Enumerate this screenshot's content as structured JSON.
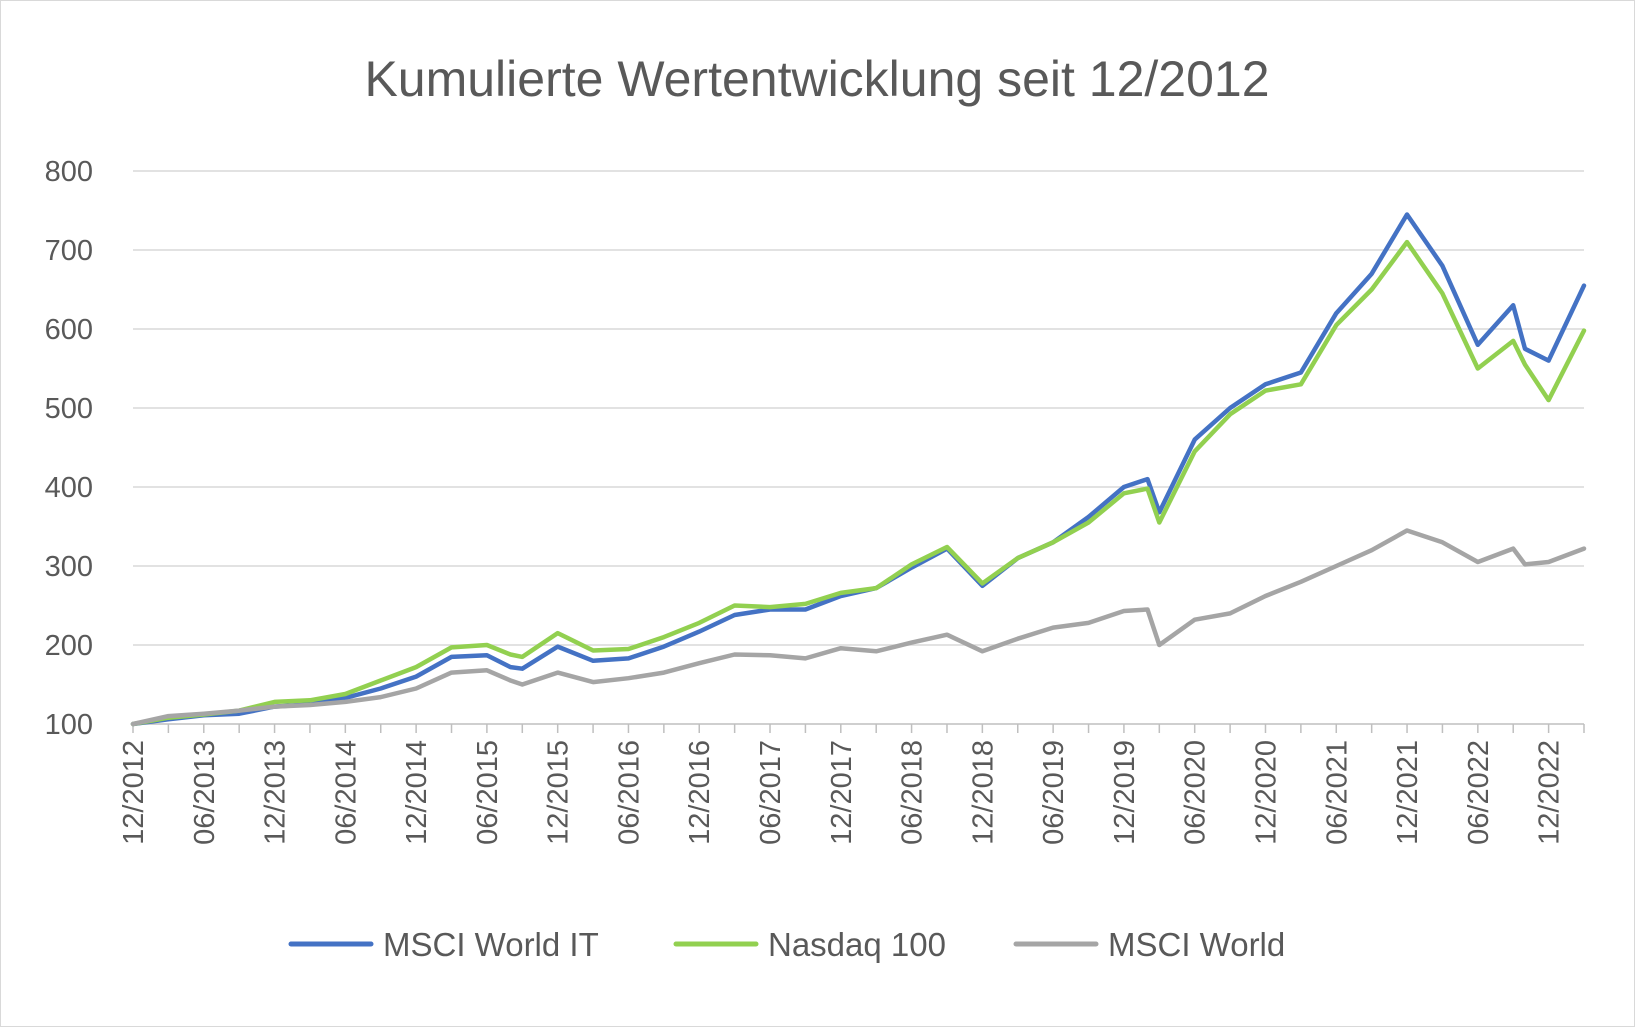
{
  "chart_data": {
    "type": "line",
    "title": "Kumulierte Wertentwicklung seit 12/2012",
    "ylim": [
      100,
      800
    ],
    "yticks": [
      100,
      200,
      300,
      400,
      500,
      600,
      700,
      800
    ],
    "ytick_labels": [
      "100",
      "200",
      "300",
      "400",
      "500",
      "600",
      "700",
      "800"
    ],
    "x_start": "12/2012",
    "x_end": "03/2023",
    "xtick_labels": [
      "12/2012",
      "06/2013",
      "12/2013",
      "06/2014",
      "12/2014",
      "06/2015",
      "12/2015",
      "06/2016",
      "12/2016",
      "06/2017",
      "12/2017",
      "06/2018",
      "12/2018",
      "06/2019",
      "12/2019",
      "06/2020",
      "12/2020",
      "06/2021",
      "12/2021",
      "06/2022",
      "12/2022"
    ],
    "grid": true,
    "legend_position": "bottom",
    "colors": {
      "msci_world_it": "#4472c4",
      "nasdaq_100": "#92d050",
      "msci_world": "#a5a5a5"
    },
    "series": [
      {
        "name": "MSCI World IT",
        "color": "#4472c4",
        "points": [
          [
            "12/2012",
            100
          ],
          [
            "03/2013",
            106
          ],
          [
            "06/2013",
            111
          ],
          [
            "09/2013",
            113
          ],
          [
            "12/2013",
            122
          ],
          [
            "03/2014",
            125
          ],
          [
            "06/2014",
            133
          ],
          [
            "09/2014",
            145
          ],
          [
            "12/2014",
            160
          ],
          [
            "03/2015",
            185
          ],
          [
            "06/2015",
            187
          ],
          [
            "08/2015",
            172
          ],
          [
            "09/2015",
            170
          ],
          [
            "12/2015",
            198
          ],
          [
            "03/2016",
            180
          ],
          [
            "06/2016",
            183
          ],
          [
            "09/2016",
            198
          ],
          [
            "12/2016",
            217
          ],
          [
            "03/2017",
            238
          ],
          [
            "06/2017",
            245
          ],
          [
            "09/2017",
            245
          ],
          [
            "12/2017",
            262
          ],
          [
            "03/2018",
            272
          ],
          [
            "06/2018",
            298
          ],
          [
            "09/2018",
            322
          ],
          [
            "12/2018",
            275
          ],
          [
            "03/2019",
            310
          ],
          [
            "06/2019",
            330
          ],
          [
            "09/2019",
            362
          ],
          [
            "12/2019",
            400
          ],
          [
            "02/2020",
            410
          ],
          [
            "03/2020",
            368
          ],
          [
            "06/2020",
            460
          ],
          [
            "09/2020",
            500
          ],
          [
            "12/2020",
            530
          ],
          [
            "03/2021",
            545
          ],
          [
            "06/2021",
            620
          ],
          [
            "09/2021",
            670
          ],
          [
            "12/2021",
            745
          ],
          [
            "03/2022",
            680
          ],
          [
            "06/2022",
            580
          ],
          [
            "09/2022",
            630
          ],
          [
            "10/2022",
            575
          ],
          [
            "12/2022",
            560
          ],
          [
            "03/2023",
            655
          ]
        ]
      },
      {
        "name": "Nasdaq 100",
        "color": "#92d050",
        "points": [
          [
            "12/2012",
            100
          ],
          [
            "03/2013",
            108
          ],
          [
            "06/2013",
            112
          ],
          [
            "09/2013",
            117
          ],
          [
            "12/2013",
            128
          ],
          [
            "03/2014",
            130
          ],
          [
            "06/2014",
            138
          ],
          [
            "09/2014",
            155
          ],
          [
            "12/2014",
            172
          ],
          [
            "03/2015",
            197
          ],
          [
            "06/2015",
            200
          ],
          [
            "08/2015",
            188
          ],
          [
            "09/2015",
            185
          ],
          [
            "12/2015",
            215
          ],
          [
            "03/2016",
            193
          ],
          [
            "06/2016",
            195
          ],
          [
            "09/2016",
            210
          ],
          [
            "12/2016",
            228
          ],
          [
            "03/2017",
            250
          ],
          [
            "06/2017",
            248
          ],
          [
            "09/2017",
            252
          ],
          [
            "12/2017",
            266
          ],
          [
            "03/2018",
            272
          ],
          [
            "06/2018",
            302
          ],
          [
            "09/2018",
            324
          ],
          [
            "12/2018",
            278
          ],
          [
            "03/2019",
            310
          ],
          [
            "06/2019",
            330
          ],
          [
            "09/2019",
            355
          ],
          [
            "12/2019",
            392
          ],
          [
            "02/2020",
            398
          ],
          [
            "03/2020",
            355
          ],
          [
            "06/2020",
            445
          ],
          [
            "09/2020",
            492
          ],
          [
            "12/2020",
            522
          ],
          [
            "03/2021",
            530
          ],
          [
            "06/2021",
            605
          ],
          [
            "09/2021",
            650
          ],
          [
            "12/2021",
            710
          ],
          [
            "03/2022",
            645
          ],
          [
            "06/2022",
            550
          ],
          [
            "09/2022",
            585
          ],
          [
            "10/2022",
            555
          ],
          [
            "12/2022",
            510
          ],
          [
            "03/2023",
            598
          ]
        ]
      },
      {
        "name": "MSCI World",
        "color": "#a5a5a5",
        "points": [
          [
            "12/2012",
            100
          ],
          [
            "03/2013",
            110
          ],
          [
            "06/2013",
            113
          ],
          [
            "09/2013",
            117
          ],
          [
            "12/2013",
            122
          ],
          [
            "03/2014",
            124
          ],
          [
            "06/2014",
            128
          ],
          [
            "09/2014",
            134
          ],
          [
            "12/2014",
            145
          ],
          [
            "03/2015",
            165
          ],
          [
            "06/2015",
            168
          ],
          [
            "08/2015",
            155
          ],
          [
            "09/2015",
            150
          ],
          [
            "12/2015",
            165
          ],
          [
            "03/2016",
            153
          ],
          [
            "06/2016",
            158
          ],
          [
            "09/2016",
            165
          ],
          [
            "12/2016",
            177
          ],
          [
            "03/2017",
            188
          ],
          [
            "06/2017",
            187
          ],
          [
            "09/2017",
            183
          ],
          [
            "12/2017",
            196
          ],
          [
            "03/2018",
            192
          ],
          [
            "06/2018",
            203
          ],
          [
            "09/2018",
            213
          ],
          [
            "12/2018",
            192
          ],
          [
            "03/2019",
            208
          ],
          [
            "06/2019",
            222
          ],
          [
            "09/2019",
            228
          ],
          [
            "12/2019",
            243
          ],
          [
            "02/2020",
            245
          ],
          [
            "03/2020",
            200
          ],
          [
            "06/2020",
            232
          ],
          [
            "09/2020",
            240
          ],
          [
            "12/2020",
            262
          ],
          [
            "03/2021",
            280
          ],
          [
            "06/2021",
            300
          ],
          [
            "09/2021",
            320
          ],
          [
            "12/2021",
            345
          ],
          [
            "03/2022",
            330
          ],
          [
            "06/2022",
            305
          ],
          [
            "09/2022",
            322
          ],
          [
            "10/2022",
            302
          ],
          [
            "12/2022",
            305
          ],
          [
            "03/2023",
            322
          ]
        ]
      }
    ]
  }
}
